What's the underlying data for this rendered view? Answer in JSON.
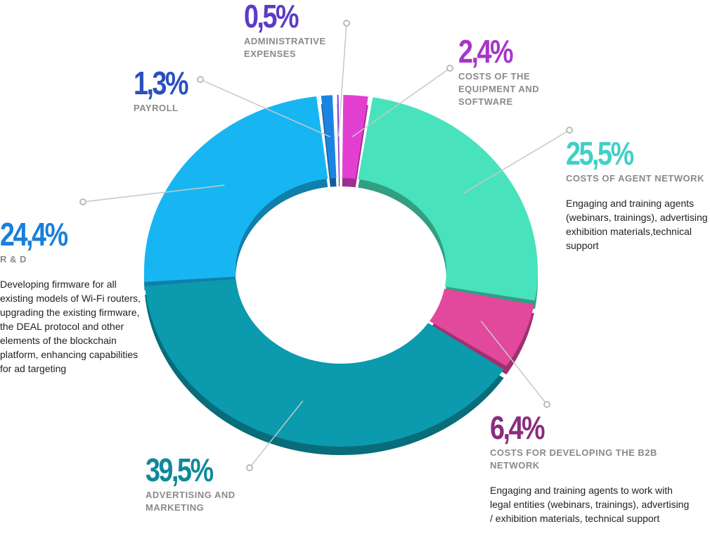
{
  "chart_data": {
    "type": "donut",
    "categories": [
      "COSTS OF THE EQUIPMENT AND SOFTWARE",
      "COSTS OF AGENT NETWORK",
      "COSTS FOR DEVELOPING THE B2B NETWORK",
      "ADVERTISING AND MARKETING",
      "R & D",
      "PAYROLL",
      "ADMINISTRATIVE EXPENSES"
    ],
    "values": [
      2.4,
      25.5,
      6.4,
      39.5,
      24.4,
      1.3,
      0.5
    ],
    "value_labels": [
      "2,4%",
      "25,5%",
      "6,4%",
      "39,5%",
      "24,4%",
      "1,3%",
      "0,5%"
    ],
    "colors": [
      "#e23fd0",
      "#48e2bc",
      "#e2489c",
      "#0b9aae",
      "#17b6f2",
      "#1b84e2",
      "#8b3fe2"
    ],
    "label_colors": [
      "#a735c9",
      "#3fd0c6",
      "#8a2c80",
      "#0e8a9a",
      "#1a7fd9",
      "#2a4fc0",
      "#5b3bc8"
    ],
    "descriptions": [
      null,
      "Engaging and training agents (webinars, trainings), advertising / exhibition materials,technical support",
      "Engaging and training agents to work with legal entities (webinars, trainings), advertising / exhibition materials, technical support",
      null,
      "Developing firmware for all existing models of Wi-Fi routers, upgrading the existing firmware, the DEAL protocol and other elements of the blockchain platform, enhancing capabilities for ad targeting",
      null,
      null
    ]
  }
}
